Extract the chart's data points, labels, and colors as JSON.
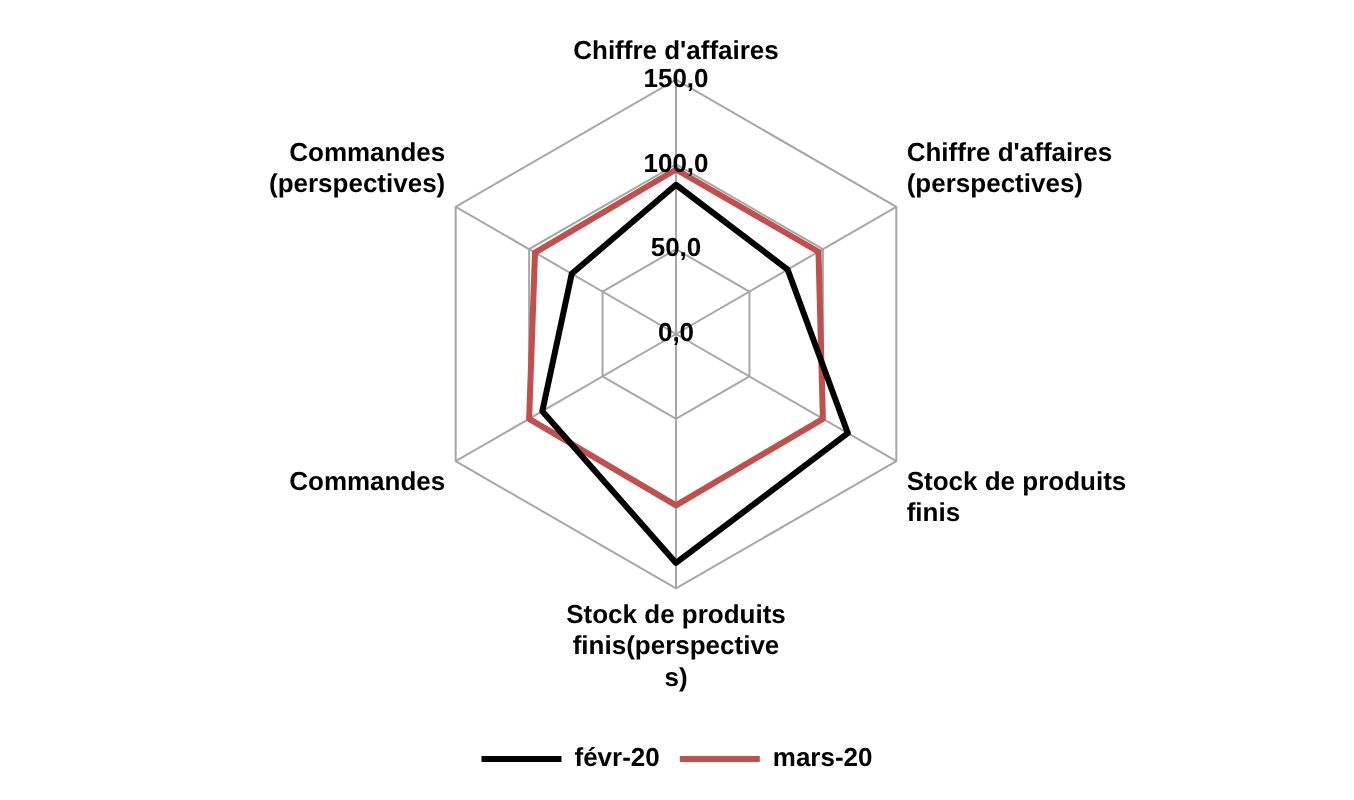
{
  "chart_data": {
    "type": "radar",
    "categories": [
      "Chiffre d'affaires",
      "Chiffre d'affaires (perspectives)",
      "Stock de produits finis",
      "Stock de produits finis(perspectives)",
      "Commandes",
      "Commandes (perspectives)"
    ],
    "series": [
      {
        "name": "févr-20",
        "color": "#000000",
        "values": [
          88,
          76,
          117,
          135,
          91,
          71
        ]
      },
      {
        "name": "mars-20",
        "color": "#c0504d",
        "values": [
          97,
          97,
          100,
          101,
          100,
          96
        ]
      }
    ],
    "ylim": [
      0,
      150
    ],
    "yticks": [
      {
        "value": 0,
        "label": "0,0"
      },
      {
        "value": 50,
        "label": "50,0"
      },
      {
        "value": 100,
        "label": "100,0"
      },
      {
        "value": 150,
        "label": "150,0"
      }
    ],
    "grid": true,
    "legend": "bottom",
    "marker": "none",
    "line_style": "solid"
  }
}
